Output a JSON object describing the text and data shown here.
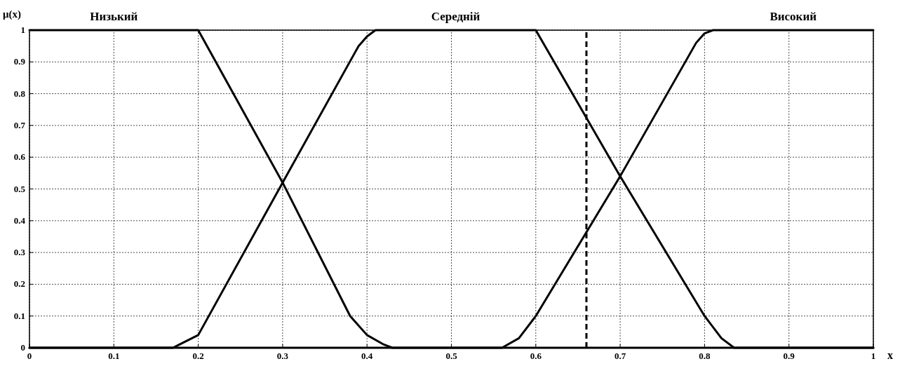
{
  "chart_data": {
    "type": "line",
    "xlabel": "x",
    "ylabel": "μ(x)",
    "xlim": [
      0,
      1
    ],
    "ylim": [
      0,
      1
    ],
    "xticks": [
      0,
      0.1,
      0.2,
      0.3,
      0.4,
      0.5,
      0.6,
      0.7,
      0.8,
      0.9,
      1
    ],
    "yticks": [
      0,
      0.1,
      0.2,
      0.3,
      0.4,
      0.5,
      0.6,
      0.7,
      0.8,
      0.9,
      1
    ],
    "grid": true,
    "marker": "none",
    "line_style": "solid",
    "series": [
      {
        "name": "Низький",
        "color": "#000000",
        "x": [
          0,
          0.2,
          0.3,
          0.38,
          0.4,
          0.42,
          0.43,
          1
        ],
        "values": [
          1,
          1,
          0.52,
          0.1,
          0.04,
          0.01,
          0,
          0
        ]
      },
      {
        "name": "Середній",
        "color": "#000000",
        "x": [
          0,
          0.17,
          0.2,
          0.3,
          0.39,
          0.4,
          0.41,
          0.6,
          0.7,
          0.8,
          0.82,
          0.835,
          1
        ],
        "values": [
          0,
          0,
          0.04,
          0.52,
          0.95,
          0.98,
          1,
          1,
          0.54,
          0.1,
          0.03,
          0,
          0
        ]
      },
      {
        "name": "Високий",
        "color": "#000000",
        "x": [
          0,
          0.56,
          0.58,
          0.6,
          0.7,
          0.79,
          0.8,
          0.81,
          1
        ],
        "values": [
          0,
          0,
          0.03,
          0.1,
          0.54,
          0.96,
          0.99,
          1,
          1
        ]
      }
    ],
    "ref_lines": [
      {
        "axis": "x",
        "value": 0.66,
        "color": "#000000",
        "line_style": "dashed"
      }
    ]
  }
}
